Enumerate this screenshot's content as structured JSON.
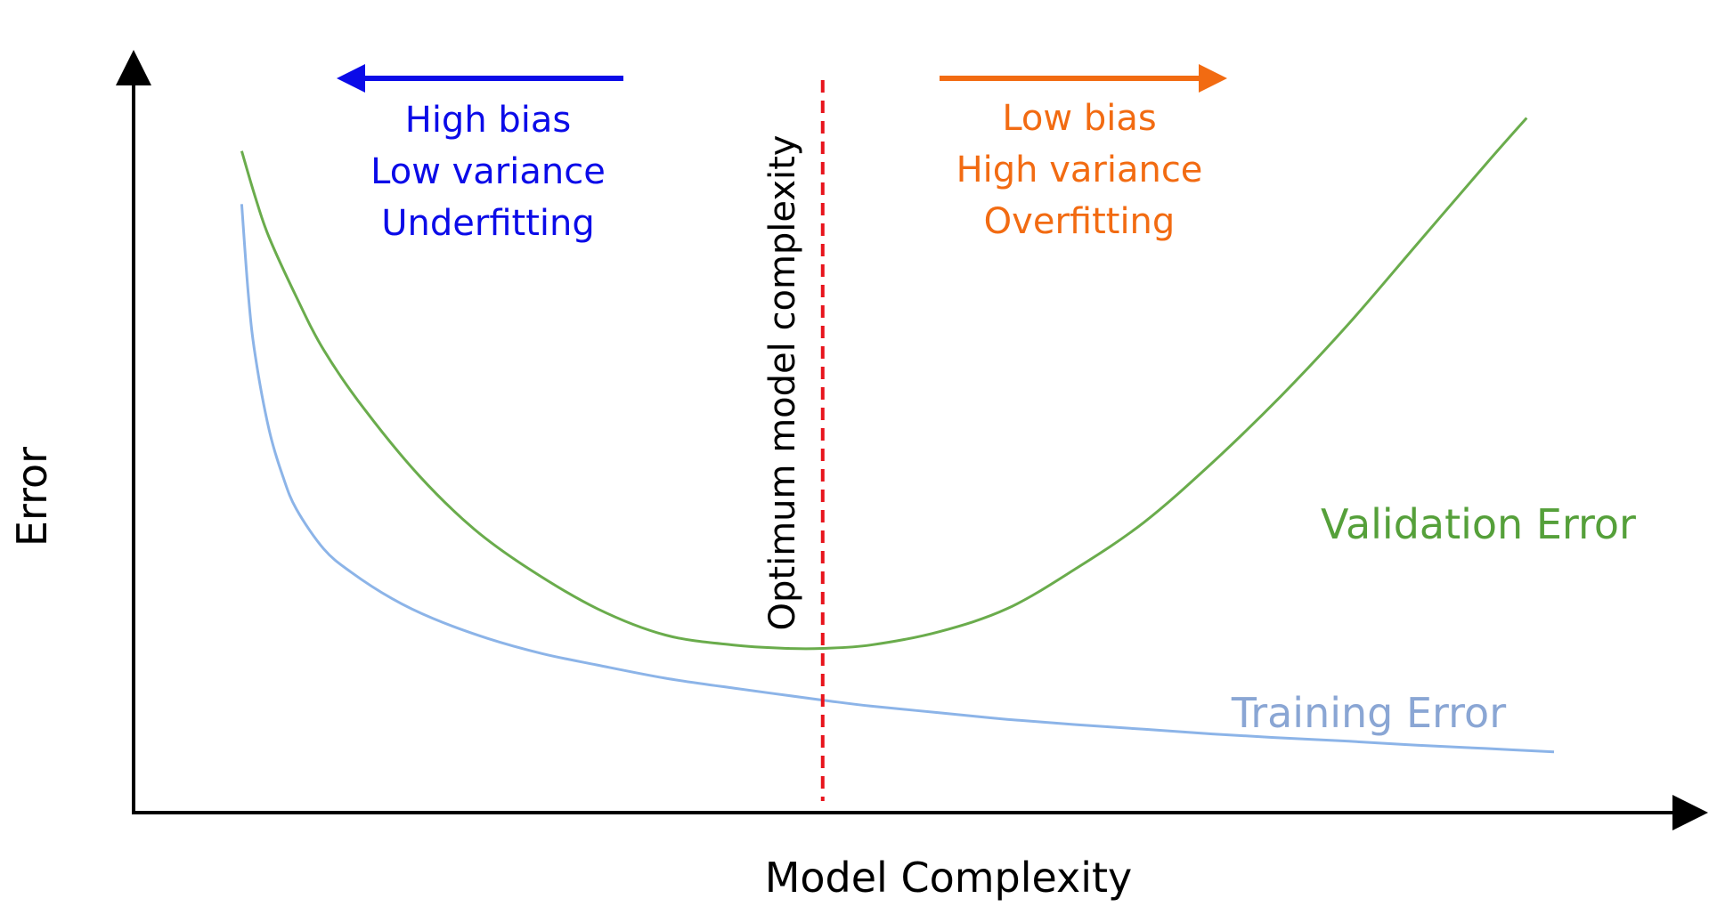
{
  "chart_data": {
    "type": "line",
    "title": "",
    "xlabel": "Model Complexity",
    "ylabel": "Error",
    "xlim": [
      0,
      100
    ],
    "ylim": [
      0,
      100
    ],
    "grid": false,
    "optimum": {
      "x": 46.5,
      "label": "Optimum model complexity",
      "color": "#e8141c"
    },
    "series": [
      {
        "name": "Validation Error",
        "color": "#6aac4c",
        "label_color": "#55a03a",
        "x": [
          4,
          5,
          6,
          8,
          10,
          13,
          17,
          21,
          25,
          30,
          35,
          40,
          44,
          46.5,
          50,
          55,
          60,
          65,
          70,
          75,
          80,
          85,
          90,
          95,
          98
        ],
        "y": [
          94,
          87,
          81,
          72,
          64,
          55,
          45,
          37,
          31,
          25,
          21,
          19.5,
          19,
          19,
          19.5,
          21.5,
          25,
          31,
          38,
          47,
          57,
          68,
          80,
          92,
          99
        ]
      },
      {
        "name": "Training Error",
        "color": "#8cb4e8",
        "label_color": "#8aa6d4",
        "x": [
          4,
          4.5,
          5,
          6,
          7,
          8,
          10,
          12,
          15,
          18,
          22,
          26,
          30,
          35,
          40,
          46.5,
          50,
          55,
          60,
          65,
          70,
          75,
          80,
          85,
          90,
          95,
          100
        ],
        "y": [
          86,
          72,
          63,
          52,
          45,
          40,
          34,
          30.5,
          26.5,
          23.5,
          20.5,
          18.2,
          16.5,
          14.5,
          13,
          11.2,
          10.3,
          9.3,
          8.3,
          7.5,
          6.8,
          6.1,
          5.5,
          5,
          4.4,
          3.9,
          3.4
        ]
      }
    ],
    "annotations": {
      "left": {
        "color": "#0b0be8",
        "direction": "left",
        "lines": [
          "High bias",
          "Low variance",
          "Underfitting"
        ]
      },
      "right": {
        "color": "#f26b12",
        "direction": "right",
        "lines": [
          "Low bias",
          "High variance",
          "Overfitting"
        ]
      }
    },
    "axis_color": "#000000"
  }
}
